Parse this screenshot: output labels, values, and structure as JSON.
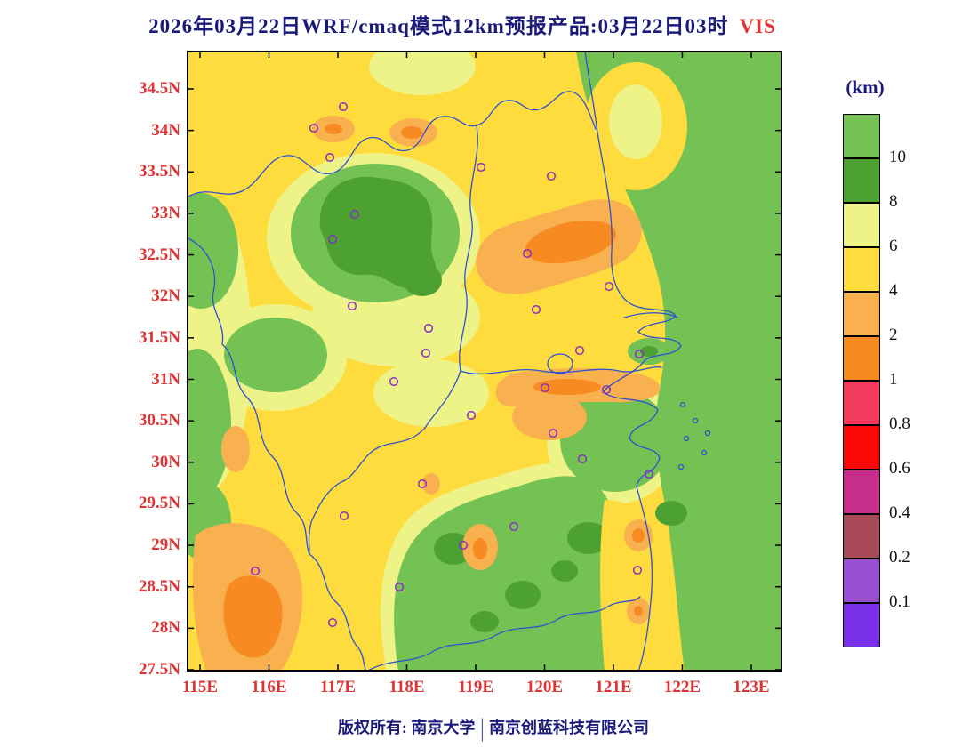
{
  "title": {
    "text": "2026年03月22日WRF/cmaq模式12km预报产品:03月22日03时",
    "highlight": "VIS"
  },
  "colorbar": {
    "unit_label": "(km)",
    "tick_labels": [
      "10",
      "8",
      "6",
      "4",
      "2",
      "1",
      "0.8",
      "0.6",
      "0.4",
      "0.2",
      "0.1"
    ],
    "colors": [
      "#74c254",
      "#4da032",
      "#eef388",
      "#fedc3e",
      "#f9b04f",
      "#f78b22",
      "#f23a5c",
      "#fd0808",
      "#c72e8c",
      "#a84957",
      "#9a4fd2",
      "#7a2fe8"
    ],
    "label_color": "#111111"
  },
  "axes": {
    "lat_labels": [
      "34.5N",
      "34N",
      "33.5N",
      "33N",
      "32.5N",
      "32N",
      "31.5N",
      "31N",
      "30.5N",
      "30N",
      "29.5N",
      "29N",
      "28.5N",
      "28N",
      "27.5N"
    ],
    "lon_labels": [
      "115E",
      "116E",
      "117E",
      "118E",
      "119E",
      "120E",
      "121E",
      "122E",
      "123E"
    ],
    "label_color": "#e03333",
    "tick_color": "#000000"
  },
  "map": {
    "frame_color": "#000000",
    "boundary_color": "#2c52cf",
    "station_color": "#8a2fbf",
    "stations": [
      [
        143,
        87
      ],
      [
        176,
        63
      ],
      [
        161,
        120
      ],
      [
        331,
        131
      ],
      [
        410,
        141
      ],
      [
        189,
        184
      ],
      [
        164,
        212
      ],
      [
        383,
        228
      ],
      [
        475,
        265
      ],
      [
        393,
        291
      ],
      [
        186,
        287
      ],
      [
        272,
        312
      ],
      [
        269,
        340
      ],
      [
        442,
        337
      ],
      [
        509,
        341
      ],
      [
        233,
        372
      ],
      [
        403,
        379
      ],
      [
        472,
        381
      ],
      [
        320,
        410
      ],
      [
        412,
        430
      ],
      [
        445,
        459
      ],
      [
        265,
        487
      ],
      [
        520,
        476
      ],
      [
        177,
        523
      ],
      [
        368,
        535
      ],
      [
        311,
        556
      ],
      [
        507,
        584
      ],
      [
        239,
        603
      ],
      [
        77,
        585
      ],
      [
        164,
        643
      ]
    ]
  },
  "footer": {
    "left": "版权所有: 南京大学",
    "divider": "|",
    "right": "南京创蓝科技有限公司"
  },
  "chart_data": {
    "type": "filled_contour_map",
    "variable": "VIS (visibility)",
    "unit": "km",
    "model_label": "WRF/cmaq模式12km预报产品",
    "forecast_date_label": "2026年03月22日",
    "valid_time_label": "03月22日03时",
    "lon_range": [
      115,
      123
    ],
    "lat_range": [
      27.5,
      34.5
    ],
    "levels": [
      0.1,
      0.2,
      0.4,
      0.6,
      0.8,
      1,
      2,
      4,
      6,
      8,
      10
    ],
    "level_colors": [
      "#7a2fe8",
      "#9a4fd2",
      "#a84957",
      "#c72e8c",
      "#fd0808",
      "#f23a5c",
      "#f78b22",
      "#f9b04f",
      "#fedc3e",
      "#eef388",
      "#4da032",
      "#74c254"
    ],
    "legend_position": "right",
    "notes": "Filled contours of forecast visibility over eastern China; dominant bands 4-6 km (yellow), 6-10+ km (greens), patches of 1-4 km (oranges); hollow purple circles mark stations; blue lines are province boundaries and coastline."
  }
}
